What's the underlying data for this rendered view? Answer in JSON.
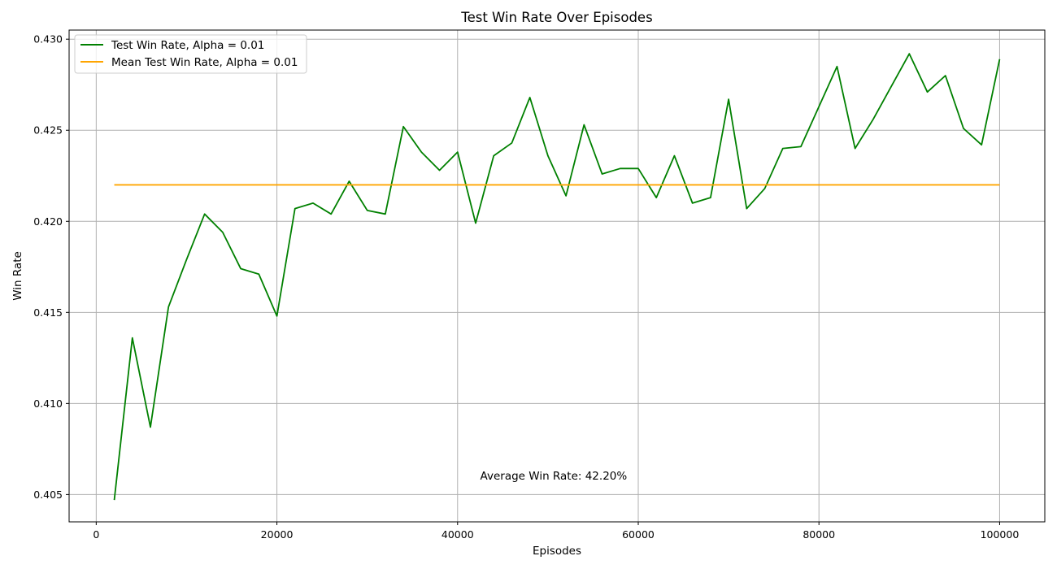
{
  "chart_data": {
    "type": "line",
    "title": "Test Win Rate Over Episodes",
    "xlabel": "Episodes",
    "ylabel": "Win Rate",
    "xlim": [
      -3000,
      105000
    ],
    "ylim": [
      0.4035,
      0.4305
    ],
    "xticks": [
      0,
      20000,
      40000,
      60000,
      80000,
      100000
    ],
    "xtick_labels": [
      "0",
      "20000",
      "40000",
      "60000",
      "80000",
      "100000"
    ],
    "yticks": [
      0.405,
      0.41,
      0.415,
      0.42,
      0.425,
      0.43
    ],
    "ytick_labels": [
      "0.405",
      "0.410",
      "0.415",
      "0.420",
      "0.425",
      "0.430"
    ],
    "grid": true,
    "legend_position": "upper-left",
    "series": [
      {
        "name": "Test Win Rate, Alpha = 0.01",
        "color": "#008000",
        "x": [
          2000,
          4000,
          6000,
          8000,
          10000,
          12000,
          14000,
          16000,
          18000,
          20000,
          22000,
          24000,
          26000,
          28000,
          30000,
          32000,
          34000,
          36000,
          38000,
          40000,
          42000,
          44000,
          46000,
          48000,
          50000,
          52000,
          54000,
          56000,
          58000,
          60000,
          62000,
          64000,
          66000,
          68000,
          70000,
          72000,
          74000,
          76000,
          78000,
          80000,
          82000,
          84000,
          86000,
          88000,
          90000,
          92000,
          94000,
          96000,
          98000,
          100000
        ],
        "y": [
          0.4047,
          0.4136,
          0.4087,
          0.4153,
          0.4179,
          0.4204,
          0.4194,
          0.4174,
          0.4171,
          0.4148,
          0.4207,
          0.421,
          0.4204,
          0.4222,
          0.4206,
          0.4204,
          0.4252,
          0.4238,
          0.4228,
          0.4238,
          0.4199,
          0.4236,
          0.4243,
          0.4268,
          0.4236,
          0.4214,
          0.4253,
          0.4226,
          0.4229,
          0.4229,
          0.4213,
          0.4236,
          0.421,
          0.4213,
          0.4267,
          0.4207,
          0.4218,
          0.424,
          0.4241,
          0.4263,
          0.4285,
          0.424,
          0.4256,
          0.4274,
          0.4292,
          0.4271,
          0.428,
          0.4251,
          0.4242,
          0.4289
        ]
      },
      {
        "name": "Mean Test Win Rate, Alpha = 0.01",
        "color": "#ffa500",
        "x": [
          2000,
          100000
        ],
        "y": [
          0.422,
          0.422
        ]
      }
    ],
    "annotations": [
      {
        "text": "Average Win Rate: 42.20%",
        "x": 42500,
        "y": 0.406
      }
    ]
  }
}
